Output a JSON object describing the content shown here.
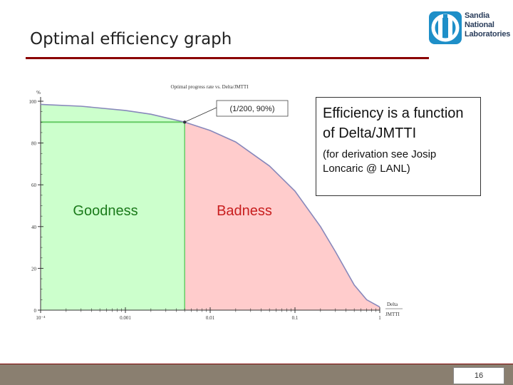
{
  "slide": {
    "title": "Optimal efficiency graph",
    "page_number": "16",
    "logo_lines": [
      "Sandia",
      "National",
      "Laboratories"
    ]
  },
  "info_box": {
    "main": "Efficiency is a function of Delta/JMTTI",
    "sub": "(for derivation see Josip Loncaric @ LANL)"
  },
  "colors": {
    "good_fill": "#ccffcc",
    "good_line": "#66cc66",
    "bad_fill": "#ffcccc",
    "curve": "#8888bb",
    "good_text": "#1a7a1a",
    "bad_text": "#c81e1e",
    "logo": "#1e8fc8"
  },
  "chart_data": {
    "type": "line",
    "title": "Optimal progress rate vs. Delta/JMTTI",
    "ylabel": "%",
    "xlabel": [
      "Delta",
      "JMTTI"
    ],
    "x_scale": "log",
    "xlim": [
      0.0001,
      1
    ],
    "ylim": [
      0,
      100
    ],
    "x_ticks": [
      {
        "value": 0.0001,
        "label": "10⁻⁴"
      },
      {
        "value": 0.001,
        "label": "0.001"
      },
      {
        "value": 0.01,
        "label": "0.01"
      },
      {
        "value": 0.1,
        "label": "0.1"
      },
      {
        "value": 1,
        "label": "1"
      }
    ],
    "y_ticks": [
      0,
      20,
      40,
      60,
      80,
      100
    ],
    "series": [
      {
        "x": [
          0.0001,
          0.0003,
          0.001,
          0.002,
          0.005,
          0.01,
          0.02,
          0.05,
          0.1,
          0.2,
          0.3,
          0.5,
          0.7,
          1
        ],
        "y": [
          98.5,
          97.6,
          95.6,
          93.8,
          90,
          86,
          80.5,
          69,
          57,
          40,
          28,
          12,
          5,
          1.5
        ]
      }
    ],
    "marker": {
      "x": 0.005,
      "y": 90,
      "label": "(1/200, 90%)"
    },
    "regions": [
      {
        "label": "Goodness",
        "x_from": 0.0001,
        "x_to": 0.005
      },
      {
        "label": "Badness",
        "x_from": 0.005,
        "x_to": 1
      }
    ]
  }
}
